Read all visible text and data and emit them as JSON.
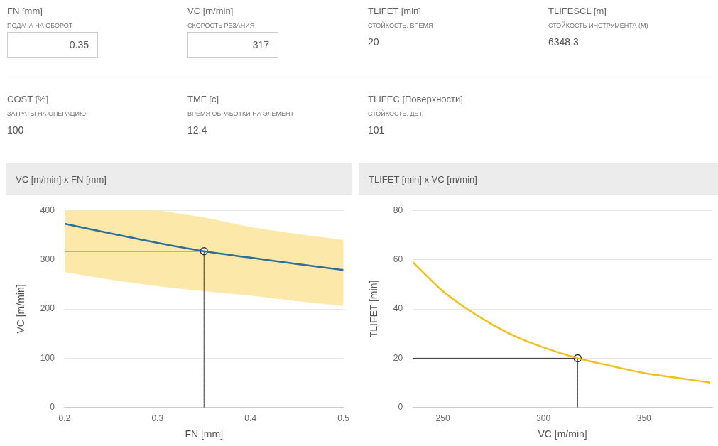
{
  "chart_data": [
    {
      "type": "other",
      "annotations": [
        "FN [mm]",
        "ПОДАЧА НА ОБОРОТ",
        "0.35",
        "VC [m/min]",
        "СКОРОСТЬ РЕЗАНИЯ",
        "317",
        "TLIFET [min]",
        "СТОЙКОСТЬ, ВРЕМЯ",
        "20",
        "TLIFESCL [m]",
        "СТОЙКОСТЬ ИНСТРУМЕНТА (M)",
        "6348.3",
        "COST [%]",
        "ЗАТРАТЫ НА ОПЕРАЦИЮ",
        "100",
        "TMF [c]",
        "ВРЕМЯ ОБРАБОТКИ НА ЭЛЕМЕНТ",
        "12.4",
        "TLIFEC [Поверхности]",
        "СТОЙКОСТЬ, ДЕТ.",
        "101"
      ]
    },
    {
      "type": "line",
      "title": "VC [m/min] x FN [mm]",
      "xlabel": "FN [mm]",
      "ylabel": "VC [m/min]",
      "xlim": [
        0.2,
        0.5
      ],
      "xticks": [
        0.2,
        0.3,
        0.4,
        0.5
      ],
      "ylim": [
        0,
        400
      ],
      "yticks": [
        0,
        100,
        200,
        300,
        400
      ],
      "grid": "y",
      "series": [
        {
          "color": "#2e6f99",
          "x": [
            0.2,
            0.25,
            0.3,
            0.35,
            0.4,
            0.45,
            0.5
          ],
          "values": [
            373,
            353,
            334,
            317,
            304,
            291,
            279
          ],
          "lower": [
            275,
            259,
            246,
            236,
            227,
            216,
            206
          ],
          "upper": [
            400,
            400,
            400,
            386,
            366,
            352,
            340
          ]
        },
        {
          "color": "#333333",
          "x": [
            0.2,
            0.35,
            0.35
          ],
          "values": [
            317,
            317,
            0
          ]
        },
        {
          "type": "scatter",
          "marker": "circle",
          "color": "#333333",
          "x": [
            0.35
          ],
          "values": [
            317
          ]
        }
      ]
    },
    {
      "type": "line",
      "title": "TLIFET [min] x VC [m/min]",
      "xlabel": "VC [m/min]",
      "ylabel": "TLIFET [min]",
      "xlim": [
        235,
        384
      ],
      "xticks": [
        250,
        300,
        350
      ],
      "ylim": [
        0,
        80
      ],
      "yticks": [
        0,
        20,
        40,
        60,
        80
      ],
      "grid": "y",
      "series": [
        {
          "color": "#f2c01e",
          "x": [
            235,
            250,
            262,
            275,
            287,
            300,
            317,
            333,
            350,
            367,
            383
          ],
          "values": [
            59,
            47.2,
            40,
            33.5,
            28.5,
            24.4,
            20,
            17,
            14,
            12,
            10.1
          ]
        },
        {
          "color": "#333333",
          "x": [
            235,
            317,
            317
          ],
          "values": [
            20,
            20,
            0
          ]
        },
        {
          "type": "scatter",
          "marker": "circle",
          "color": "#333333",
          "x": [
            317
          ],
          "values": [
            20
          ]
        }
      ]
    }
  ]
}
